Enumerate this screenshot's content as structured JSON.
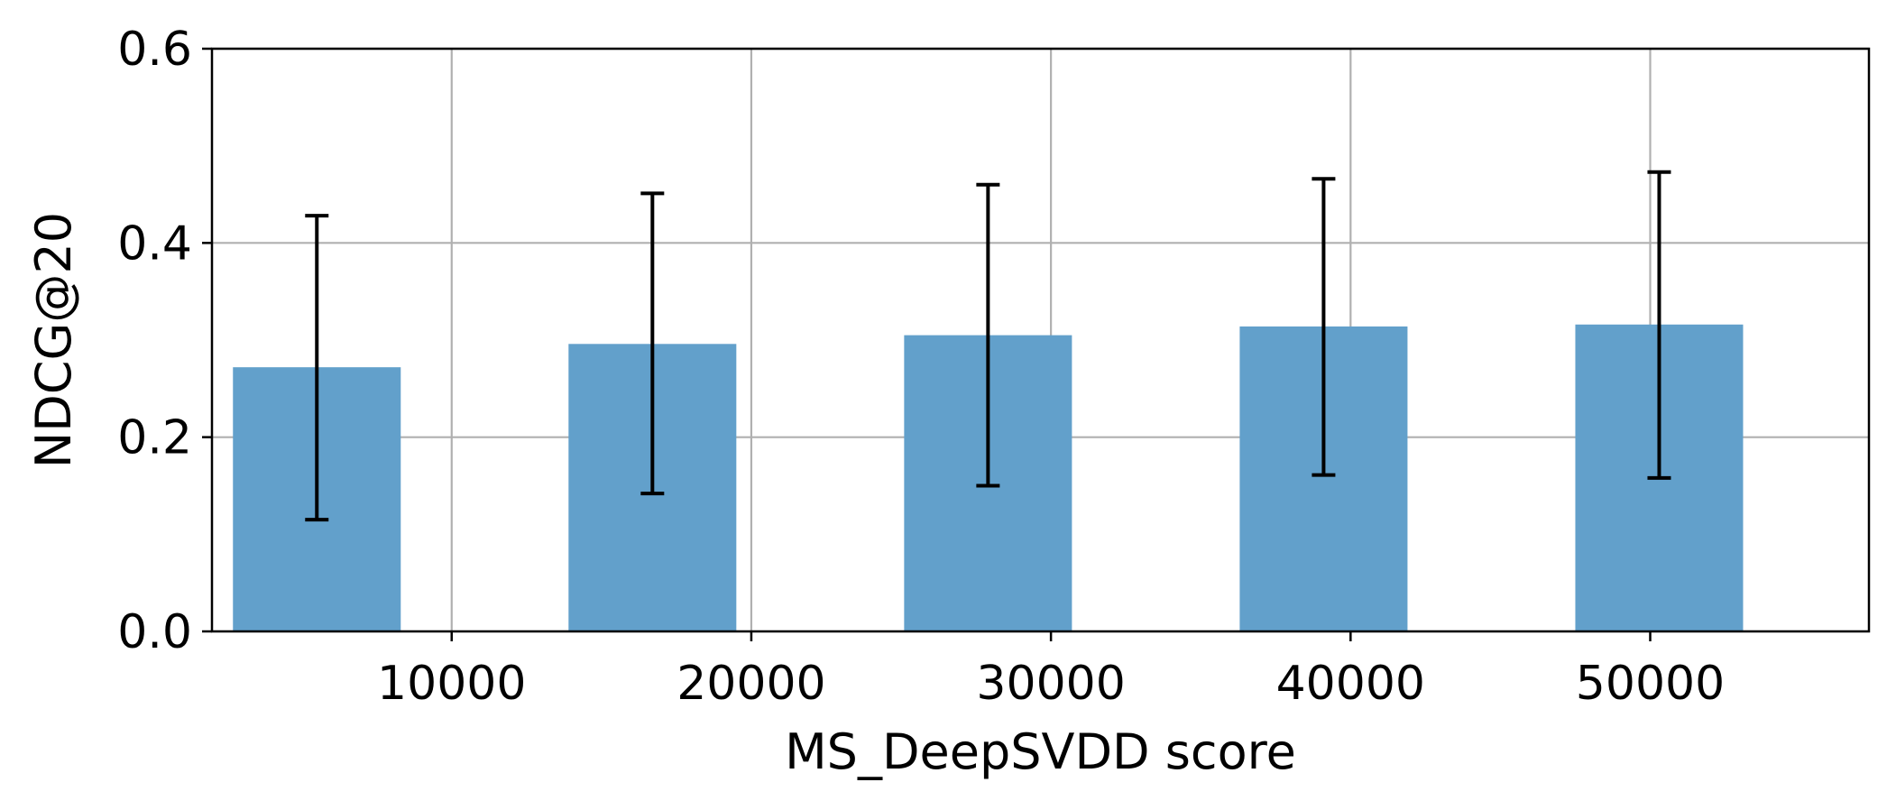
{
  "chart_data": {
    "type": "bar",
    "xlabel": "MS_DeepSVDD score",
    "ylabel": "NDCG@20",
    "xlim": [
      2000,
      57300
    ],
    "ylim": [
      0,
      0.6
    ],
    "x_ticks": [
      10000,
      20000,
      30000,
      40000,
      50000
    ],
    "x_tick_labels": [
      "10000",
      "20000",
      "30000",
      "40000",
      "50000"
    ],
    "y_ticks": [
      0.0,
      0.2,
      0.4,
      0.6
    ],
    "y_tick_labels": [
      "0.0",
      "0.2",
      "0.4",
      "0.6"
    ],
    "grid": true,
    "bar_width": 5600,
    "bar_color": "#62a0cb",
    "series": [
      {
        "x": [
          5500,
          16700,
          27900,
          39100,
          50300
        ],
        "values": [
          0.272,
          0.296,
          0.305,
          0.314,
          0.316
        ],
        "error_low": [
          0.115,
          0.142,
          0.15,
          0.161,
          0.158
        ],
        "error_high": [
          0.428,
          0.451,
          0.46,
          0.466,
          0.473
        ]
      }
    ]
  }
}
